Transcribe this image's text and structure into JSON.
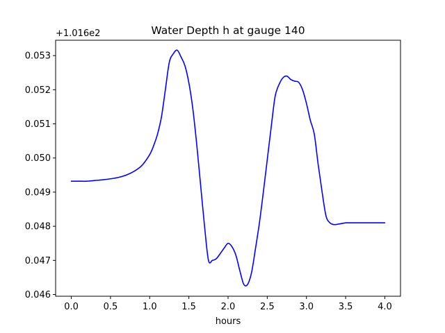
{
  "chart_data": {
    "type": "line",
    "title": "Water Depth h at gauge 140",
    "xlabel": "hours",
    "ylabel": "",
    "offset_label": "+1.016e2",
    "xlim": [
      -0.2,
      4.2
    ],
    "ylim": [
      0.04595,
      0.05345
    ],
    "x_ticks": [
      0.0,
      0.5,
      1.0,
      1.5,
      2.0,
      2.5,
      3.0,
      3.5,
      4.0
    ],
    "x_tick_labels": [
      "0.0",
      "0.5",
      "1.0",
      "1.5",
      "2.0",
      "2.5",
      "3.0",
      "3.5",
      "4.0"
    ],
    "y_ticks": [
      0.046,
      0.047,
      0.048,
      0.049,
      0.05,
      0.051,
      0.052,
      0.053
    ],
    "y_tick_labels": [
      "0.046",
      "0.047",
      "0.048",
      "0.049",
      "0.050",
      "0.051",
      "0.052",
      "0.053"
    ],
    "grid": false,
    "series": [
      {
        "color": "#0000ff",
        "x": [
          0.0,
          0.1,
          0.2,
          0.3,
          0.4,
          0.5,
          0.6,
          0.7,
          0.8,
          0.9,
          1.0,
          1.05,
          1.1,
          1.15,
          1.2,
          1.25,
          1.3,
          1.35,
          1.4,
          1.45,
          1.5,
          1.55,
          1.6,
          1.65,
          1.7,
          1.75,
          1.8,
          1.85,
          1.9,
          1.95,
          2.0,
          2.05,
          2.1,
          2.15,
          2.2,
          2.25,
          2.3,
          2.35,
          2.4,
          2.45,
          2.5,
          2.55,
          2.6,
          2.65,
          2.7,
          2.75,
          2.8,
          2.85,
          2.9,
          2.95,
          3.0,
          3.05,
          3.1,
          3.15,
          3.2,
          3.25,
          3.3,
          3.35,
          3.4,
          3.45,
          3.5,
          3.55,
          3.6,
          3.65,
          3.7,
          3.75,
          3.8,
          3.85,
          3.9,
          3.95,
          4.0
        ],
        "values": [
          0.04932,
          0.04932,
          0.04932,
          0.04934,
          0.04936,
          0.04939,
          0.04943,
          0.0495,
          0.04961,
          0.04978,
          0.0501,
          0.05036,
          0.0507,
          0.0512,
          0.052,
          0.0528,
          0.05305,
          0.05316,
          0.05296,
          0.0527,
          0.0522,
          0.05145,
          0.0504,
          0.0492,
          0.048,
          0.047,
          0.047,
          0.04705,
          0.0472,
          0.04736,
          0.0475,
          0.0474,
          0.04715,
          0.0467,
          0.0463,
          0.0463,
          0.04665,
          0.04735,
          0.0481,
          0.049,
          0.04995,
          0.0509,
          0.0518,
          0.05215,
          0.05235,
          0.0524,
          0.0523,
          0.05225,
          0.05222,
          0.052,
          0.0516,
          0.0511,
          0.0507,
          0.0498,
          0.049,
          0.0483,
          0.0481,
          0.04805,
          0.04806,
          0.04808,
          0.0481,
          0.0481,
          0.0481,
          0.0481,
          0.0481,
          0.0481,
          0.0481,
          0.0481,
          0.0481,
          0.0481,
          0.0481
        ]
      }
    ]
  }
}
